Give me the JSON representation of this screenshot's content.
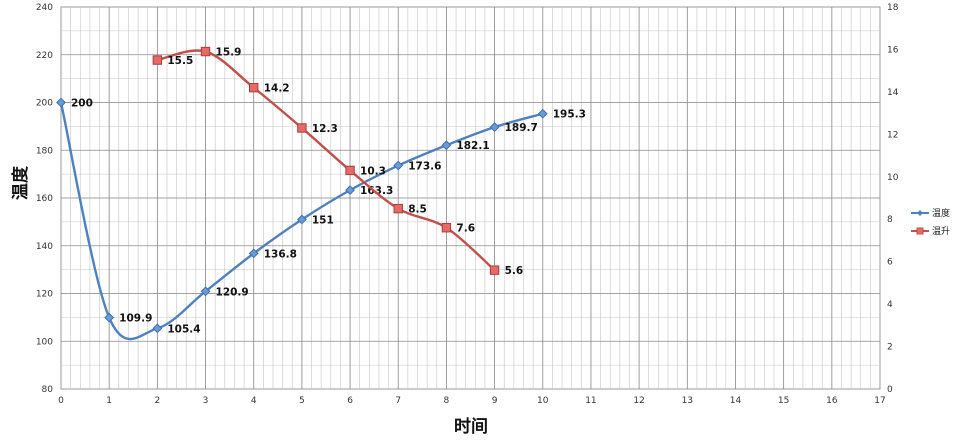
{
  "chart_data": {
    "type": "line",
    "xlabel": "时间",
    "ylabel": "温度",
    "xlim": [
      0,
      17
    ],
    "x_ticks": [
      "0",
      "1",
      "2",
      "3",
      "4",
      "5",
      "6",
      "7",
      "8",
      "9",
      "10",
      "11",
      "12",
      "13",
      "14",
      "15",
      "16",
      "17"
    ],
    "y_left": {
      "lim": [
        80,
        240
      ],
      "ticks": [
        "80",
        "100",
        "120",
        "140",
        "160",
        "180",
        "200",
        "220",
        "240"
      ]
    },
    "y_right": {
      "lim": [
        0,
        18
      ],
      "ticks": [
        "0",
        "2",
        "4",
        "6",
        "8",
        "10",
        "12",
        "14",
        "16",
        "18"
      ]
    },
    "grid": true,
    "legend": "right",
    "series": [
      {
        "name": "温度",
        "axis": "left",
        "color": "#4F81BD",
        "marker": "diamond",
        "x": [
          0,
          1,
          2,
          3,
          4,
          5,
          6,
          7,
          8,
          9,
          10
        ],
        "values": [
          200,
          109.9,
          105.4,
          120.9,
          136.8,
          151,
          163.3,
          173.6,
          182.1,
          189.7,
          195.3
        ],
        "labels": [
          "200",
          "109.9",
          "105.4",
          "120.9",
          "136.8",
          "151",
          "163.3",
          "173.6",
          "182.1",
          "189.7",
          "195.3"
        ]
      },
      {
        "name": "温升",
        "axis": "right",
        "color": "#C0504D",
        "marker": "square",
        "x": [
          2,
          3,
          4,
          5,
          6,
          7,
          8,
          9
        ],
        "values": [
          15.5,
          15.9,
          14.2,
          12.3,
          10.3,
          8.5,
          7.6,
          5.6
        ],
        "labels": [
          "15.5",
          "15.9",
          "14.2",
          "12.3",
          "10.3",
          "8.5",
          "7.6",
          "5.6"
        ]
      }
    ]
  }
}
